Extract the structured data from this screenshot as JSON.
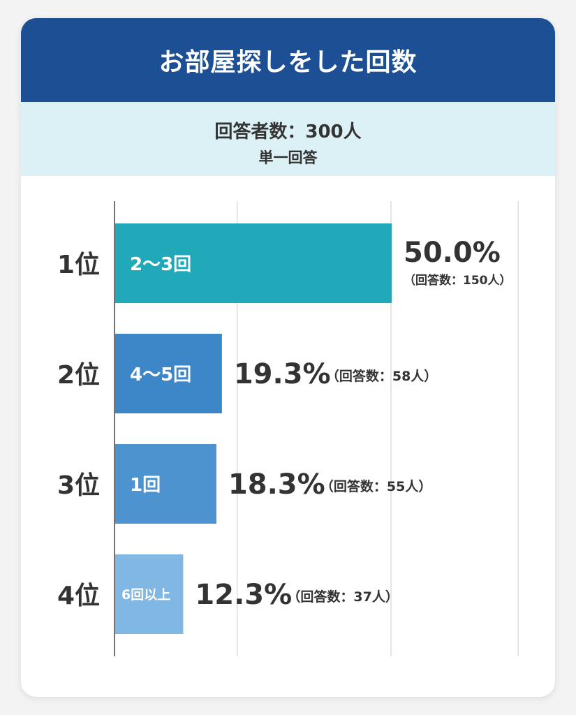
{
  "title": "お部屋探しをした回数",
  "respondents_label": "回答者数：300人",
  "answer_type": "単一回答",
  "colors": {
    "header": "#1d4f95",
    "subheader_bg": "#dcf1f6",
    "grid": "#cccccc"
  },
  "chart_data": {
    "type": "bar",
    "orientation": "horizontal",
    "title": "お部屋探しをした回数",
    "xlim": [
      0,
      65
    ],
    "grid": true,
    "ranks": [
      "1位",
      "2位",
      "3位",
      "4位"
    ],
    "categories": [
      "2〜3回",
      "4〜5回",
      "1回",
      "6回以上"
    ],
    "values": [
      50.0,
      19.3,
      18.3,
      12.3
    ],
    "value_labels": [
      "50.0%",
      "19.3%",
      "18.3%",
      "12.3%"
    ],
    "counts": [
      "（回答数：150人）",
      "（回答数：58人）",
      "（回答数：55人）",
      "（回答数：37人）"
    ],
    "bar_colors": [
      "#21a9ba",
      "#3d86c7",
      "#4d93d0",
      "#80b7e3"
    ]
  }
}
